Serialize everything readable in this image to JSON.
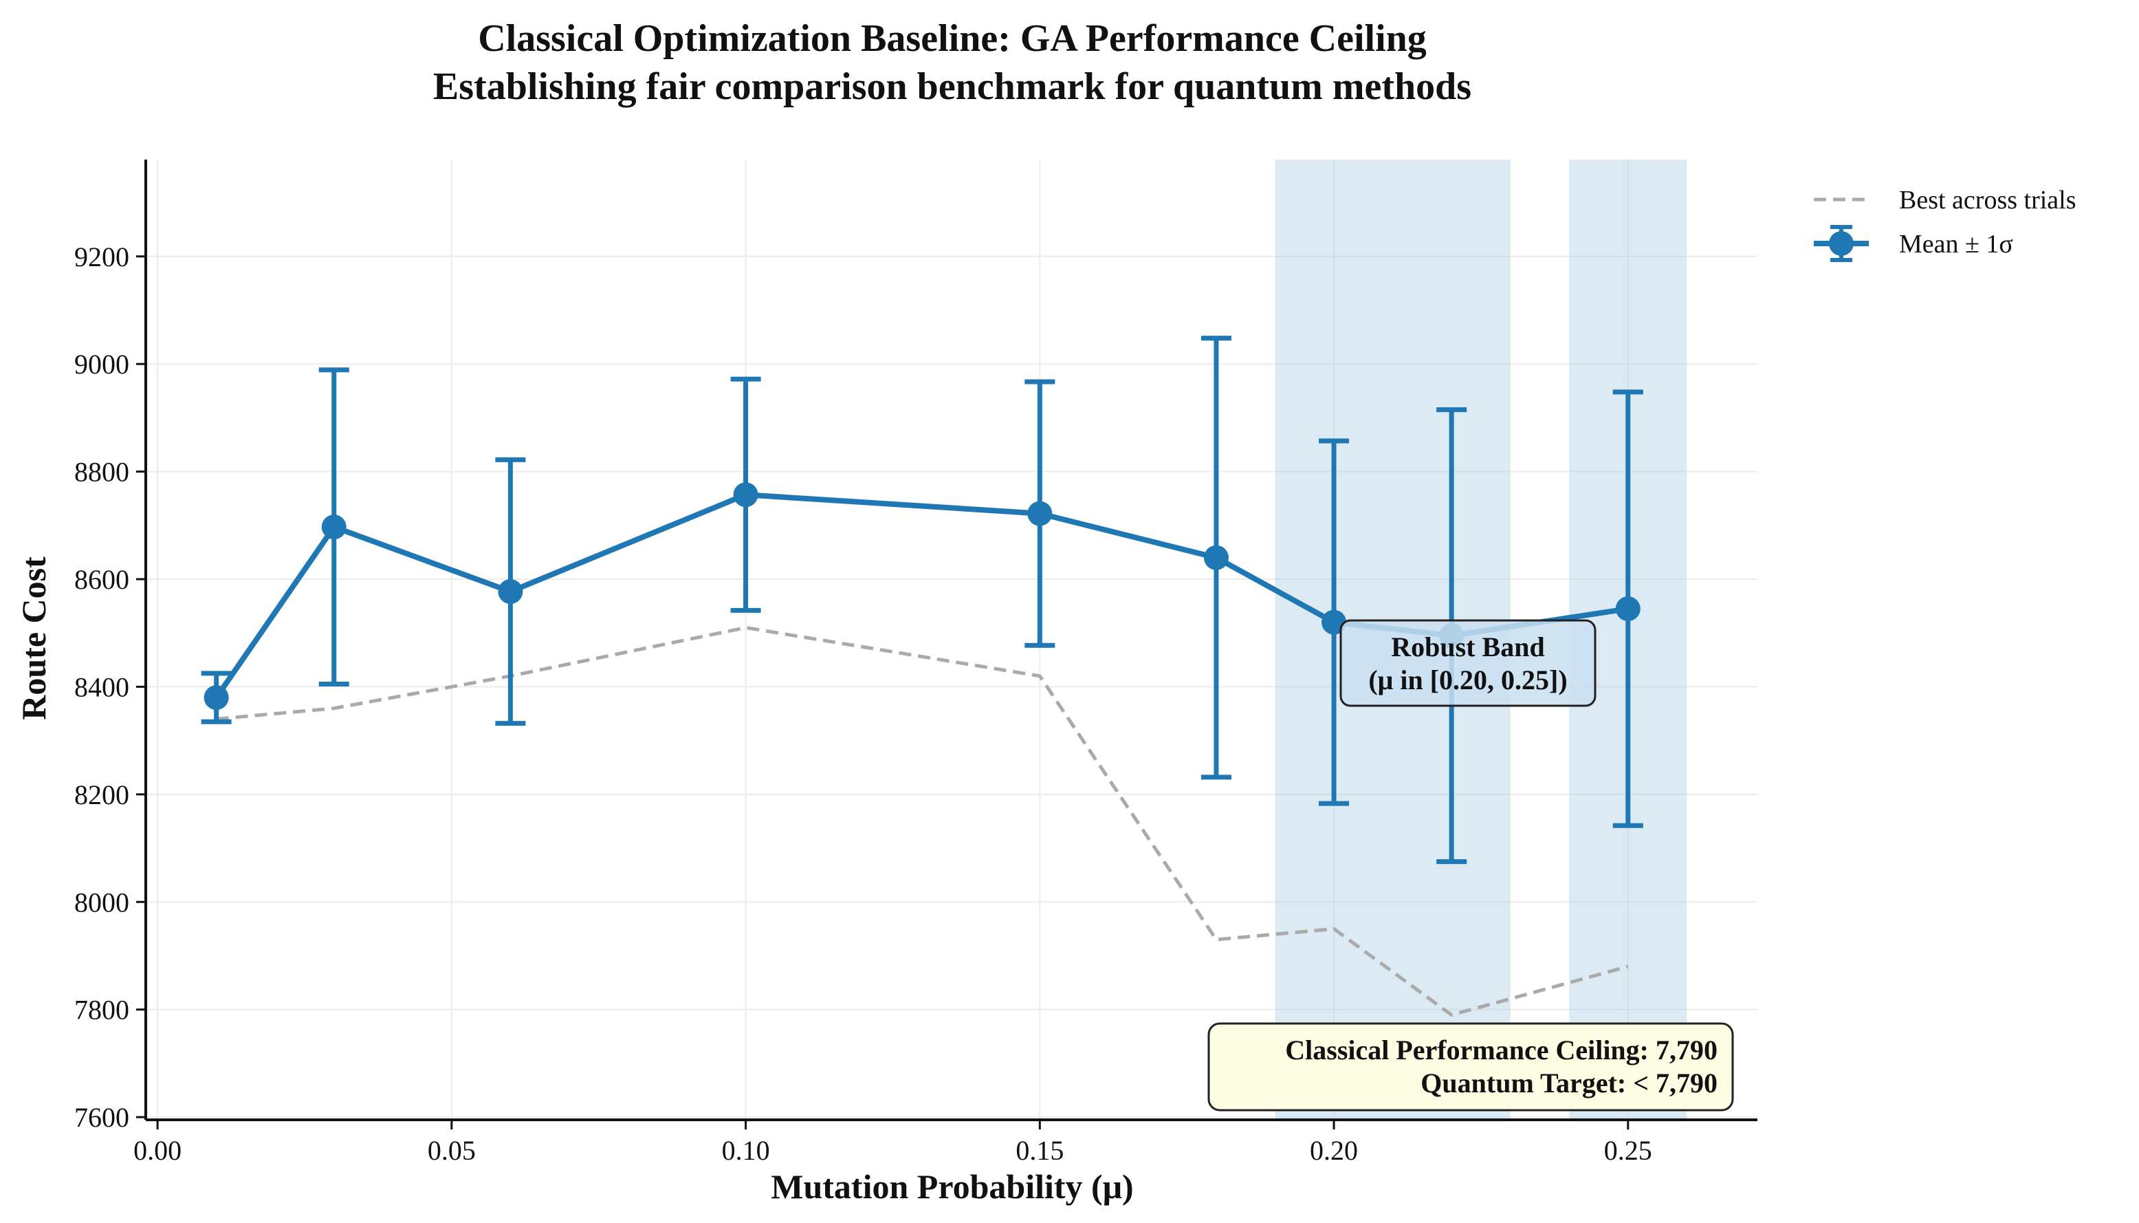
{
  "chart_data": {
    "type": "line",
    "title": "Classical Optimization Baseline: GA Performance Ceiling",
    "subtitle": "Establishing fair comparison benchmark for quantum methods",
    "xlabel": "Mutation Probability (μ)",
    "ylabel": "Route Cost",
    "xlim": [
      -0.002,
      0.272
    ],
    "ylim": [
      7595,
      9380
    ],
    "xticks": [
      0.0,
      0.05,
      0.1,
      0.15,
      0.2,
      0.25
    ],
    "xtick_labels": [
      "0.00",
      "0.05",
      "0.10",
      "0.15",
      "0.20",
      "0.25"
    ],
    "yticks": [
      7600,
      7800,
      8000,
      8200,
      8400,
      8600,
      8800,
      9000,
      9200
    ],
    "ytick_labels": [
      "7600",
      "7800",
      "8000",
      "8200",
      "8400",
      "8600",
      "8800",
      "9000",
      "9200"
    ],
    "grid": true,
    "legend_position": "outside-top-right",
    "shaded_regions": [
      {
        "x0": 0.19,
        "x1": 0.21
      },
      {
        "x0": 0.21,
        "x1": 0.23
      },
      {
        "x0": 0.24,
        "x1": 0.26
      }
    ],
    "series": [
      {
        "name": "Best across trials",
        "style": "dashed",
        "color": "#aaaaaa",
        "x": [
          0.01,
          0.03,
          0.06,
          0.1,
          0.15,
          0.18,
          0.2,
          0.22,
          0.25
        ],
        "values": [
          8340,
          8360,
          8420,
          8510,
          8420,
          7930,
          7950,
          7790,
          7880
        ]
      },
      {
        "name": "Mean ± 1σ",
        "style": "solid-markers-errorbars",
        "color": "#1f77b4",
        "x": [
          0.01,
          0.03,
          0.06,
          0.1,
          0.15,
          0.18,
          0.2,
          0.22,
          0.25
        ],
        "values": [
          8380,
          8697,
          8577,
          8757,
          8722,
          8640,
          8520,
          8495,
          8545
        ],
        "errors": [
          45,
          292,
          245,
          215,
          245,
          408,
          337,
          420,
          403
        ]
      }
    ],
    "annotations": {
      "robust_band": {
        "line1": "Robust Band",
        "line2": "(μ in [0.20, 0.25])",
        "anchor_x": 0.2265,
        "anchor_y": 8425
      },
      "ceiling": {
        "line1": "Classical Performance Ceiling: 7,790",
        "line2": "Quantum Target: < 7,790"
      }
    },
    "colors": {
      "mean": "#1f77b4",
      "best": "#aaaaaa",
      "band": "#a9cce3",
      "robust_box": "#c9dff0",
      "ceiling_box": "#fdfde4"
    }
  }
}
